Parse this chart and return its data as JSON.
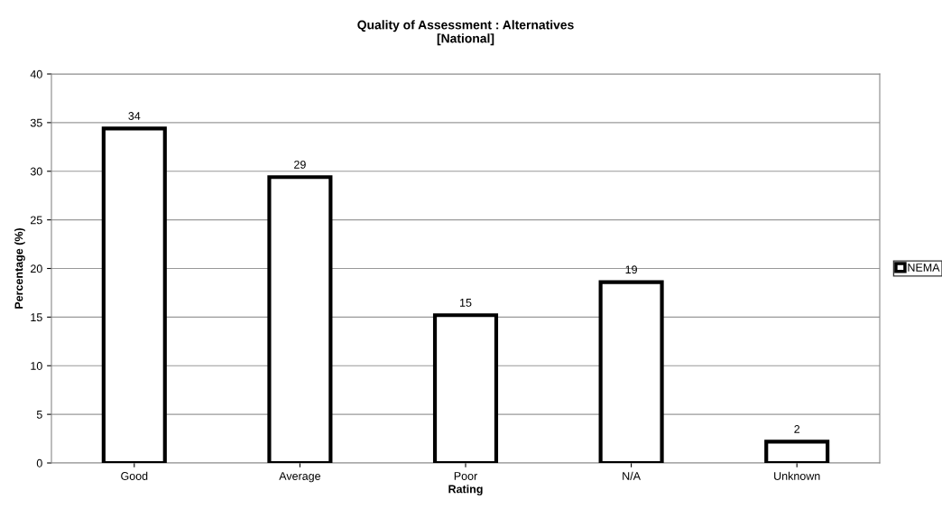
{
  "chart_data": {
    "type": "bar",
    "title": "Quality of Assessment : Alternatives\n[National]",
    "xlabel": "Rating",
    "ylabel": "Percentage (%)",
    "categories": [
      "Good",
      "Average",
      "Poor",
      "N/A",
      "Unknown"
    ],
    "series": [
      {
        "name": "NEMA",
        "color": "#ffffff",
        "values": [
          34.4,
          29.4,
          15.2,
          18.6,
          2.2
        ],
        "value_labels": [
          "34",
          "29",
          "15",
          "19",
          "2"
        ]
      }
    ],
    "ylim": [
      0,
      40
    ],
    "yticks": [
      0,
      5,
      10,
      15,
      20,
      25,
      30,
      35,
      40
    ],
    "grid": "y",
    "legend": "right"
  }
}
